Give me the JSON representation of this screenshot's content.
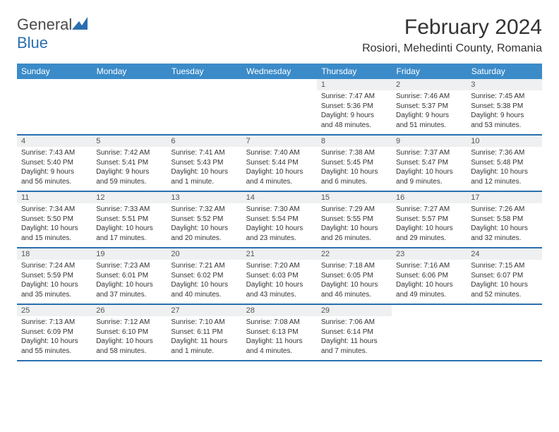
{
  "brand": {
    "part1": "General",
    "part2": "Blue"
  },
  "title": "February 2024",
  "location": "Rosiori, Mehedinti County, Romania",
  "weekdays": [
    "Sunday",
    "Monday",
    "Tuesday",
    "Wednesday",
    "Thursday",
    "Friday",
    "Saturday"
  ],
  "colors": {
    "header_bg": "#3b8bc9",
    "header_text": "#ffffff",
    "rule": "#2a6fb0",
    "daynum_bg": "#eef0f1",
    "text": "#333333"
  },
  "weeks": [
    [
      null,
      null,
      null,
      null,
      {
        "n": "1",
        "sr": "7:47 AM",
        "ss": "5:36 PM",
        "dl": "9 hours and 48 minutes."
      },
      {
        "n": "2",
        "sr": "7:46 AM",
        "ss": "5:37 PM",
        "dl": "9 hours and 51 minutes."
      },
      {
        "n": "3",
        "sr": "7:45 AM",
        "ss": "5:38 PM",
        "dl": "9 hours and 53 minutes."
      }
    ],
    [
      {
        "n": "4",
        "sr": "7:43 AM",
        "ss": "5:40 PM",
        "dl": "9 hours and 56 minutes."
      },
      {
        "n": "5",
        "sr": "7:42 AM",
        "ss": "5:41 PM",
        "dl": "9 hours and 59 minutes."
      },
      {
        "n": "6",
        "sr": "7:41 AM",
        "ss": "5:43 PM",
        "dl": "10 hours and 1 minute."
      },
      {
        "n": "7",
        "sr": "7:40 AM",
        "ss": "5:44 PM",
        "dl": "10 hours and 4 minutes."
      },
      {
        "n": "8",
        "sr": "7:38 AM",
        "ss": "5:45 PM",
        "dl": "10 hours and 6 minutes."
      },
      {
        "n": "9",
        "sr": "7:37 AM",
        "ss": "5:47 PM",
        "dl": "10 hours and 9 minutes."
      },
      {
        "n": "10",
        "sr": "7:36 AM",
        "ss": "5:48 PM",
        "dl": "10 hours and 12 minutes."
      }
    ],
    [
      {
        "n": "11",
        "sr": "7:34 AM",
        "ss": "5:50 PM",
        "dl": "10 hours and 15 minutes."
      },
      {
        "n": "12",
        "sr": "7:33 AM",
        "ss": "5:51 PM",
        "dl": "10 hours and 17 minutes."
      },
      {
        "n": "13",
        "sr": "7:32 AM",
        "ss": "5:52 PM",
        "dl": "10 hours and 20 minutes."
      },
      {
        "n": "14",
        "sr": "7:30 AM",
        "ss": "5:54 PM",
        "dl": "10 hours and 23 minutes."
      },
      {
        "n": "15",
        "sr": "7:29 AM",
        "ss": "5:55 PM",
        "dl": "10 hours and 26 minutes."
      },
      {
        "n": "16",
        "sr": "7:27 AM",
        "ss": "5:57 PM",
        "dl": "10 hours and 29 minutes."
      },
      {
        "n": "17",
        "sr": "7:26 AM",
        "ss": "5:58 PM",
        "dl": "10 hours and 32 minutes."
      }
    ],
    [
      {
        "n": "18",
        "sr": "7:24 AM",
        "ss": "5:59 PM",
        "dl": "10 hours and 35 minutes."
      },
      {
        "n": "19",
        "sr": "7:23 AM",
        "ss": "6:01 PM",
        "dl": "10 hours and 37 minutes."
      },
      {
        "n": "20",
        "sr": "7:21 AM",
        "ss": "6:02 PM",
        "dl": "10 hours and 40 minutes."
      },
      {
        "n": "21",
        "sr": "7:20 AM",
        "ss": "6:03 PM",
        "dl": "10 hours and 43 minutes."
      },
      {
        "n": "22",
        "sr": "7:18 AM",
        "ss": "6:05 PM",
        "dl": "10 hours and 46 minutes."
      },
      {
        "n": "23",
        "sr": "7:16 AM",
        "ss": "6:06 PM",
        "dl": "10 hours and 49 minutes."
      },
      {
        "n": "24",
        "sr": "7:15 AM",
        "ss": "6:07 PM",
        "dl": "10 hours and 52 minutes."
      }
    ],
    [
      {
        "n": "25",
        "sr": "7:13 AM",
        "ss": "6:09 PM",
        "dl": "10 hours and 55 minutes."
      },
      {
        "n": "26",
        "sr": "7:12 AM",
        "ss": "6:10 PM",
        "dl": "10 hours and 58 minutes."
      },
      {
        "n": "27",
        "sr": "7:10 AM",
        "ss": "6:11 PM",
        "dl": "11 hours and 1 minute."
      },
      {
        "n": "28",
        "sr": "7:08 AM",
        "ss": "6:13 PM",
        "dl": "11 hours and 4 minutes."
      },
      {
        "n": "29",
        "sr": "7:06 AM",
        "ss": "6:14 PM",
        "dl": "11 hours and 7 minutes."
      },
      null,
      null
    ]
  ],
  "labels": {
    "sunrise": "Sunrise:",
    "sunset": "Sunset:",
    "daylight": "Daylight:"
  }
}
